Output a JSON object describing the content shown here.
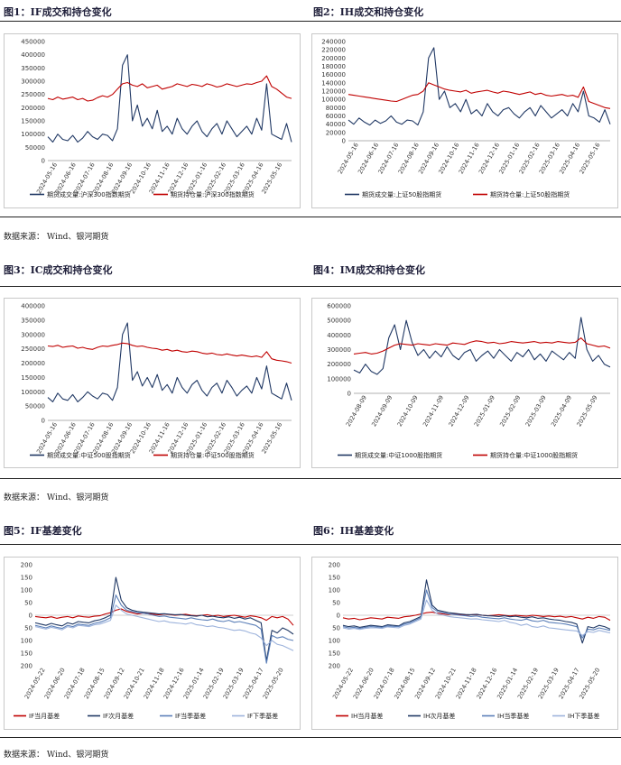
{
  "source_text": "数据来源： Wind、银河期货",
  "chart_data": [
    {
      "id": "fig1",
      "type": "line",
      "title": "图1：IF成交和持仓变化",
      "ylim": [
        0,
        450000
      ],
      "yticks": [
        "0",
        "50000",
        "100000",
        "150000",
        "200000",
        "250000",
        "300000",
        "350000",
        "400000",
        "450000"
      ],
      "xticks": [
        "2024-05-16",
        "2024-06-16",
        "2024-07-16",
        "2024-08-16",
        "2024-09-16",
        "2024-10-16",
        "2024-11-16",
        "2024-12-16",
        "2025-01-16",
        "2025-02-16",
        "2025-03-16",
        "2025-04-16",
        "2025-05-16"
      ],
      "series": [
        {
          "name": "期货成交量:沪深300指数期货",
          "color": "#203864",
          "values": [
            90000,
            70000,
            100000,
            80000,
            75000,
            95000,
            70000,
            85000,
            110000,
            90000,
            80000,
            100000,
            95000,
            75000,
            120000,
            360000,
            400000,
            150000,
            210000,
            130000,
            160000,
            120000,
            190000,
            110000,
            130000,
            100000,
            160000,
            120000,
            100000,
            130000,
            150000,
            110000,
            90000,
            120000,
            140000,
            100000,
            150000,
            120000,
            90000,
            110000,
            130000,
            100000,
            160000,
            115000,
            290000,
            100000,
            90000,
            80000,
            140000,
            70000
          ]
        },
        {
          "name": "期货持仓量:沪深300指数期货",
          "color": "#c00000",
          "values": [
            235000,
            230000,
            240000,
            232000,
            236000,
            240000,
            230000,
            235000,
            225000,
            228000,
            238000,
            245000,
            240000,
            250000,
            270000,
            290000,
            295000,
            285000,
            280000,
            290000,
            275000,
            280000,
            285000,
            270000,
            275000,
            280000,
            290000,
            285000,
            280000,
            288000,
            285000,
            280000,
            290000,
            285000,
            278000,
            282000,
            290000,
            285000,
            280000,
            285000,
            290000,
            288000,
            295000,
            300000,
            320000,
            280000,
            270000,
            255000,
            240000,
            235000
          ]
        }
      ]
    },
    {
      "id": "fig2",
      "type": "line",
      "title": "图2：IH成交和持仓变化",
      "ylim": [
        0,
        240000
      ],
      "yticks": [
        "0",
        "20000",
        "40000",
        "60000",
        "80000",
        "100000",
        "120000",
        "140000",
        "160000",
        "180000",
        "200000",
        "220000",
        "240000"
      ],
      "xticks": [
        "2024-05-16",
        "2024-06-16",
        "2024-07-16",
        "2024-08-16",
        "2024-09-16",
        "2024-10-16",
        "2024-11-16",
        "2024-12-16",
        "2025-01-16",
        "2025-02-16",
        "2025-03-16",
        "2025-04-16",
        "2025-05-16"
      ],
      "series": [
        {
          "name": "期货成交量:上证50股指期货",
          "color": "#203864",
          "values": [
            50000,
            40000,
            55000,
            45000,
            38000,
            50000,
            42000,
            48000,
            60000,
            45000,
            40000,
            50000,
            48000,
            38000,
            70000,
            200000,
            225000,
            100000,
            120000,
            80000,
            90000,
            70000,
            100000,
            65000,
            75000,
            60000,
            90000,
            70000,
            60000,
            75000,
            80000,
            65000,
            55000,
            70000,
            80000,
            60000,
            85000,
            70000,
            55000,
            65000,
            75000,
            60000,
            90000,
            70000,
            120000,
            60000,
            55000,
            45000,
            75000,
            40000
          ]
        },
        {
          "name": "期货持仓量:上证50股指期货",
          "color": "#c00000",
          "values": [
            112000,
            110000,
            108000,
            106000,
            104000,
            102000,
            100000,
            98000,
            96000,
            95000,
            100000,
            105000,
            110000,
            112000,
            120000,
            140000,
            135000,
            130000,
            125000,
            122000,
            120000,
            118000,
            122000,
            115000,
            118000,
            120000,
            122000,
            118000,
            115000,
            120000,
            118000,
            115000,
            112000,
            115000,
            118000,
            112000,
            115000,
            110000,
            108000,
            110000,
            112000,
            108000,
            110000,
            105000,
            130000,
            95000,
            90000,
            85000,
            80000,
            78000
          ]
        }
      ]
    },
    {
      "id": "fig3",
      "type": "line",
      "title": "图3：IC成交和持仓变化",
      "ylim": [
        0,
        400000
      ],
      "yticks": [
        "0",
        "50000",
        "100000",
        "150000",
        "200000",
        "250000",
        "300000",
        "350000",
        "400000"
      ],
      "xticks": [
        "2024-05-16",
        "2024-06-16",
        "2024-07-16",
        "2024-08-16",
        "2024-09-16",
        "2024-10-16",
        "2024-11-16",
        "2024-12-16",
        "2025-01-16",
        "2025-02-16",
        "2025-03-16",
        "2025-04-16",
        "2025-05-16"
      ],
      "series": [
        {
          "name": "期货成交量:中证500股指期货",
          "color": "#203864",
          "values": [
            80000,
            65000,
            95000,
            75000,
            70000,
            90000,
            65000,
            80000,
            100000,
            85000,
            75000,
            95000,
            90000,
            70000,
            115000,
            300000,
            340000,
            140000,
            170000,
            120000,
            150000,
            115000,
            160000,
            105000,
            125000,
            95000,
            150000,
            115000,
            95000,
            125000,
            140000,
            105000,
            85000,
            115000,
            130000,
            95000,
            140000,
            115000,
            85000,
            105000,
            120000,
            95000,
            150000,
            110000,
            190000,
            95000,
            85000,
            75000,
            130000,
            70000
          ]
        },
        {
          "name": "期货持仓量:中证500股指期货",
          "color": "#c00000",
          "values": [
            260000,
            258000,
            262000,
            255000,
            258000,
            260000,
            252000,
            255000,
            250000,
            248000,
            255000,
            260000,
            258000,
            262000,
            265000,
            270000,
            268000,
            262000,
            258000,
            260000,
            255000,
            252000,
            250000,
            245000,
            248000,
            242000,
            245000,
            240000,
            238000,
            242000,
            240000,
            235000,
            232000,
            235000,
            230000,
            228000,
            232000,
            228000,
            225000,
            228000,
            225000,
            222000,
            225000,
            220000,
            240000,
            215000,
            210000,
            208000,
            205000,
            200000
          ]
        }
      ]
    },
    {
      "id": "fig4",
      "type": "line",
      "title": "图4：IM成交和持仓变化",
      "ylim": [
        0,
        600000
      ],
      "yticks": [
        "0",
        "100000",
        "200000",
        "300000",
        "400000",
        "500000",
        "600000"
      ],
      "xticks": [
        "2024-08-09",
        "2024-09-09",
        "2024-10-09",
        "2024-11-09",
        "2024-12-09",
        "2025-01-09",
        "2025-02-09",
        "2025-03-09",
        "2025-04-09",
        "2025-05-09"
      ],
      "series": [
        {
          "name": "期货成交量:中证1000股指期货",
          "color": "#203864",
          "values": [
            160000,
            140000,
            200000,
            150000,
            130000,
            170000,
            380000,
            470000,
            300000,
            500000,
            350000,
            260000,
            300000,
            240000,
            290000,
            250000,
            320000,
            260000,
            230000,
            280000,
            300000,
            220000,
            260000,
            290000,
            240000,
            300000,
            260000,
            220000,
            280000,
            250000,
            300000,
            230000,
            270000,
            220000,
            290000,
            260000,
            230000,
            280000,
            240000,
            520000,
            300000,
            220000,
            260000,
            200000,
            180000
          ]
        },
        {
          "name": "期货持仓量:中证1000股指期货",
          "color": "#c00000",
          "values": [
            270000,
            275000,
            280000,
            270000,
            275000,
            290000,
            310000,
            330000,
            340000,
            335000,
            330000,
            340000,
            335000,
            330000,
            340000,
            335000,
            330000,
            345000,
            340000,
            335000,
            350000,
            360000,
            355000,
            345000,
            350000,
            340000,
            345000,
            355000,
            350000,
            345000,
            350000,
            355000,
            345000,
            350000,
            345000,
            355000,
            350000,
            345000,
            350000,
            380000,
            340000,
            330000,
            320000,
            325000,
            310000
          ]
        }
      ]
    },
    {
      "id": "fig5",
      "type": "line",
      "title": "图5：IF基差变化",
      "ylim": [
        -200,
        200
      ],
      "ylabels": [
        "200",
        "150",
        "100",
        "50",
        "0",
        "50",
        "100",
        "150",
        "200"
      ],
      "xticks": [
        "2024-05-22",
        "2024-06-20",
        "2024-07-18",
        "2024-08-15",
        "2024-09-12",
        "2024-10-21",
        "2024-11-18",
        "2024-12-16",
        "2025-01-14",
        "2025-02-19",
        "2025-03-19",
        "2025-04-17",
        "2025-05-20"
      ],
      "series": [
        {
          "name": "IF当月基差",
          "color": "#c00000",
          "values": [
            -5,
            -8,
            -10,
            -6,
            -12,
            -8,
            -5,
            -10,
            -3,
            -6,
            -8,
            -4,
            -2,
            5,
            10,
            20,
            25,
            15,
            10,
            5,
            8,
            6,
            4,
            2,
            5,
            3,
            0,
            2,
            4,
            0,
            -2,
            0,
            2,
            -3,
            0,
            -5,
            -2,
            0,
            -4,
            -8,
            -2,
            -5,
            -10,
            -20,
            -5,
            -10,
            -5,
            -15,
            -40
          ]
        },
        {
          "name": "IF次月基差",
          "color": "#203864",
          "values": [
            -30,
            -35,
            -40,
            -32,
            -38,
            -42,
            -30,
            -35,
            -25,
            -28,
            -30,
            -22,
            -18,
            -10,
            0,
            150,
            60,
            30,
            20,
            15,
            12,
            10,
            8,
            5,
            6,
            4,
            2,
            3,
            0,
            -2,
            -4,
            0,
            -6,
            -4,
            -8,
            -10,
            -6,
            -12,
            -8,
            -15,
            -10,
            -20,
            -30,
            -180,
            -60,
            -70,
            -50,
            -60,
            -75
          ]
        },
        {
          "name": "IF当季基差",
          "color": "#5b7fb8",
          "values": [
            -40,
            -45,
            -50,
            -42,
            -48,
            -52,
            -40,
            -45,
            -35,
            -38,
            -40,
            -32,
            -28,
            -20,
            -10,
            80,
            40,
            20,
            15,
            10,
            8,
            5,
            0,
            -5,
            -3,
            -8,
            -10,
            -12,
            -15,
            -10,
            -15,
            -18,
            -20,
            -15,
            -22,
            -25,
            -20,
            -28,
            -25,
            -30,
            -35,
            -40,
            -55,
            -190,
            -80,
            -90,
            -85,
            -95,
            -100
          ]
        },
        {
          "name": "IF下季基差",
          "color": "#9db3dc",
          "values": [
            -45,
            -50,
            -55,
            -48,
            -52,
            -58,
            -45,
            -50,
            -40,
            -42,
            -45,
            -38,
            -35,
            -28,
            -20,
            40,
            20,
            5,
            0,
            -5,
            -10,
            -15,
            -20,
            -25,
            -22,
            -28,
            -30,
            -32,
            -35,
            -30,
            -38,
            -40,
            -45,
            -42,
            -48,
            -50,
            -55,
            -60,
            -58,
            -62,
            -70,
            -75,
            -90,
            -120,
            -100,
            -115,
            -120,
            -130,
            -140
          ]
        }
      ]
    },
    {
      "id": "fig6",
      "type": "line",
      "title": "图6：IH基差变化",
      "ylim": [
        -200,
        200
      ],
      "ylabels": [
        "200",
        "150",
        "100",
        "50",
        "0",
        "50",
        "100",
        "150",
        "200"
      ],
      "xticks": [
        "2024-05-22",
        "2024-06-20",
        "2024-07-18",
        "2024-08-15",
        "2024-09-12",
        "2024-10-21",
        "2024-11-18",
        "2024-12-16",
        "2025-01-14",
        "2025-02-19",
        "2025-03-19",
        "2025-04-17",
        "2025-05-20"
      ],
      "series": [
        {
          "name": "IH当月基差",
          "color": "#c00000",
          "values": [
            -10,
            -15,
            -12,
            -18,
            -14,
            -10,
            -12,
            -15,
            -8,
            -10,
            -12,
            -6,
            -4,
            0,
            5,
            10,
            12,
            8,
            5,
            3,
            5,
            2,
            0,
            2,
            3,
            0,
            -2,
            0,
            2,
            0,
            -3,
            0,
            -2,
            -4,
            0,
            -2,
            -5,
            -3,
            -6,
            -4,
            -8,
            -5,
            -10,
            -15,
            -8,
            -12,
            -5,
            -8,
            -20
          ]
        },
        {
          "name": "IH次月基差",
          "color": "#203864",
          "values": [
            -40,
            -45,
            -42,
            -48,
            -44,
            -40,
            -42,
            -45,
            -38,
            -40,
            -42,
            -30,
            -25,
            -15,
            -5,
            140,
            40,
            20,
            15,
            10,
            8,
            5,
            3,
            2,
            4,
            0,
            -2,
            -3,
            -5,
            -2,
            -6,
            -4,
            -8,
            -10,
            -6,
            -12,
            -10,
            -15,
            -18,
            -20,
            -25,
            -28,
            -35,
            -110,
            -45,
            -50,
            -40,
            -45,
            -55
          ]
        },
        {
          "name": "IH当季基差",
          "color": "#5b7fb8",
          "values": [
            -45,
            -50,
            -48,
            -52,
            -48,
            -45,
            -46,
            -48,
            -42,
            -44,
            -45,
            -35,
            -30,
            -20,
            -10,
            100,
            30,
            15,
            10,
            5,
            3,
            0,
            -2,
            -5,
            -3,
            -8,
            -10,
            -12,
            -14,
            -10,
            -15,
            -18,
            -20,
            -15,
            -22,
            -25,
            -20,
            -28,
            -30,
            -32,
            -35,
            -40,
            -45,
            -90,
            -55,
            -58,
            -50,
            -55,
            -60
          ]
        },
        {
          "name": "IH下季基差",
          "color": "#9db3dc",
          "values": [
            -50,
            -55,
            -52,
            -56,
            -52,
            -50,
            -50,
            -52,
            -46,
            -48,
            -50,
            -40,
            -35,
            -25,
            -15,
            60,
            20,
            5,
            0,
            -5,
            -8,
            -10,
            -12,
            -15,
            -14,
            -18,
            -20,
            -22,
            -25,
            -20,
            -28,
            -32,
            -40,
            -35,
            -45,
            -48,
            -42,
            -50,
            -52,
            -55,
            -58,
            -60,
            -62,
            -80,
            -65,
            -68,
            -60,
            -65,
            -70
          ]
        }
      ]
    }
  ]
}
